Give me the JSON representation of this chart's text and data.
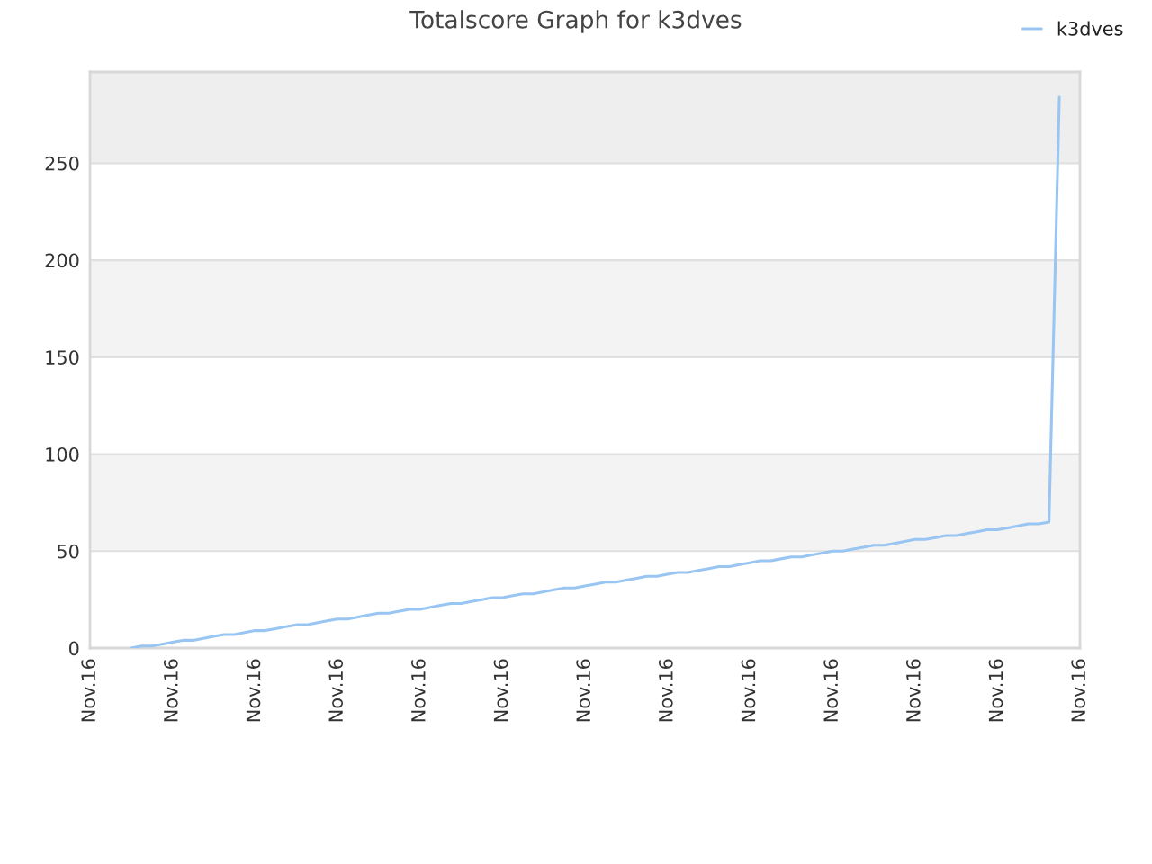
{
  "chart_data": {
    "type": "line",
    "title": "Totalscore Graph for k3dves",
    "categories": [
      "Nov.16",
      null,
      null,
      null,
      null,
      null,
      null,
      null,
      "Nov.16",
      null,
      null,
      null,
      null,
      null,
      null,
      null,
      "Nov.16",
      null,
      null,
      null,
      null,
      null,
      null,
      null,
      "Nov.16",
      null,
      null,
      null,
      null,
      null,
      null,
      null,
      "Nov.16",
      null,
      null,
      null,
      null,
      null,
      null,
      null,
      "Nov.16",
      null,
      null,
      null,
      null,
      null,
      null,
      null,
      "Nov.16",
      null,
      null,
      null,
      null,
      null,
      null,
      null,
      "Nov.16",
      null,
      null,
      null,
      null,
      null,
      null,
      null,
      "Nov.16",
      null,
      null,
      null,
      null,
      null,
      null,
      null,
      "Nov.16",
      null,
      null,
      null,
      null,
      null,
      null,
      null,
      "Nov.16",
      null,
      null,
      null,
      null,
      null,
      null,
      null,
      "Nov.16",
      null,
      null,
      null,
      null,
      null,
      null,
      null,
      "Nov.16"
    ],
    "series": [
      {
        "name": "k3dves",
        "color": "#99c5f2",
        "values": [
          null,
          null,
          null,
          null,
          0,
          1,
          1,
          2,
          3,
          4,
          4,
          5,
          6,
          7,
          7,
          8,
          9,
          9,
          10,
          11,
          12,
          12,
          13,
          14,
          15,
          15,
          16,
          17,
          18,
          18,
          19,
          20,
          20,
          21,
          22,
          23,
          23,
          24,
          25,
          26,
          26,
          27,
          28,
          28,
          29,
          30,
          31,
          31,
          32,
          33,
          34,
          34,
          35,
          36,
          37,
          37,
          38,
          39,
          39,
          40,
          41,
          42,
          42,
          43,
          44,
          45,
          45,
          46,
          47,
          47,
          48,
          49,
          50,
          50,
          51,
          52,
          53,
          53,
          54,
          55,
          56,
          56,
          57,
          58,
          58,
          59,
          60,
          61,
          61,
          62,
          63,
          64,
          64,
          65,
          284,
          null,
          null
        ]
      }
    ],
    "ylim": [
      0,
      297
    ],
    "yticks": [
      0,
      50,
      100,
      150,
      200,
      250
    ],
    "bands": [
      {
        "axis": "y",
        "from": 50,
        "to": 100,
        "color": "#f3f3f3"
      },
      {
        "axis": "y",
        "from": 150,
        "to": 200,
        "color": "#f3f3f3"
      },
      {
        "axis": "y",
        "from": 250,
        "to": 297,
        "color": "#eeeeee"
      }
    ],
    "grid": "y",
    "legend": "top right",
    "line_style": "solid"
  }
}
